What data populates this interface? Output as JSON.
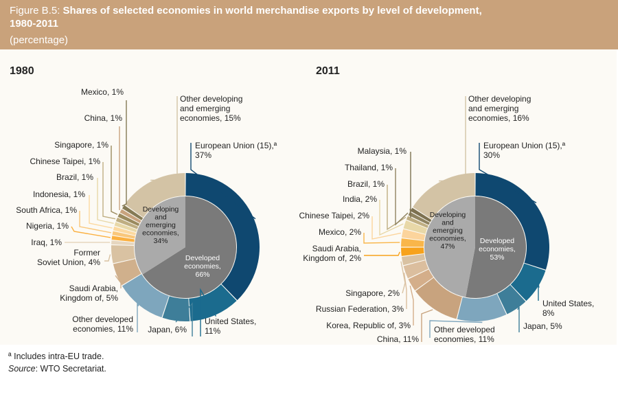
{
  "header": {
    "figure_label": "Figure B.5:",
    "title_line1": "Shares of selected economies in world merchandise exports by level of development,",
    "title_line2": "1980-2011",
    "subtitle": "(percentage)"
  },
  "colors": {
    "header_bg": "#c9a27b",
    "eu": "#0f4870",
    "us": "#1b6b8e",
    "japan": "#3e7e99",
    "other_developed": "#7ea6bd",
    "developed_inner": "#7a7a7a",
    "developing_inner": "#aaaaaa",
    "other_developing": "#d3c3a5",
    "china": "#c8a37e",
    "saudi_arabia": "#d0b08c",
    "former_soviet_union": "#d9c2a2",
    "iraq": "#e6d6bf",
    "nigeria": "#fbb040",
    "south_africa": "#f9c77b",
    "indonesia": "#fcd9a0",
    "brazil": "#e8d8a8",
    "chinese_taipei": "#bfae82",
    "singapore": "#9a8a5e",
    "mexico": "#857a55",
    "korea": "#d4ae8a",
    "russian_federation": "#dbbe9e",
    "saudi_2011": "#f7a21b",
    "mexico_2011": "#f9b64a",
    "india": "#fcd49c",
    "thailand": "#8f8360",
    "malaysia": "#7d7150"
  },
  "chart_data": [
    {
      "type": "pie",
      "title": "1980",
      "inner_ring": [
        {
          "label": "Developed economies, 66%",
          "value": 66
        },
        {
          "label": "Developing and emerging economies, 34%",
          "value": 34
        }
      ],
      "outer_ring": [
        {
          "label": "European Union (15),ª 37%",
          "value": 37,
          "color_key": "eu"
        },
        {
          "label": "United States, 11%",
          "value": 11,
          "color_key": "us"
        },
        {
          "label": "Japan, 6%",
          "value": 6,
          "color_key": "japan"
        },
        {
          "label": "Other developed economies, 11%",
          "value": 11,
          "color_key": "other_developed"
        },
        {
          "label": "Saudi Arabia, Kingdom of, 5%",
          "value": 5,
          "color_key": "saudi_arabia"
        },
        {
          "label": "Former Soviet Union, 4%",
          "value": 4,
          "color_key": "former_soviet_union"
        },
        {
          "label": "Iraq, 1%",
          "value": 1,
          "color_key": "iraq"
        },
        {
          "label": "Nigeria, 1%",
          "value": 1,
          "color_key": "nigeria"
        },
        {
          "label": "South Africa, 1%",
          "value": 1,
          "color_key": "south_africa"
        },
        {
          "label": "Indonesia, 1%",
          "value": 1,
          "color_key": "indonesia"
        },
        {
          "label": "Brazil, 1%",
          "value": 1,
          "color_key": "brazil"
        },
        {
          "label": "Chinese Taipei, 1%",
          "value": 1,
          "color_key": "chinese_taipei"
        },
        {
          "label": "Singapore, 1%",
          "value": 1,
          "color_key": "singapore"
        },
        {
          "label": "China, 1%",
          "value": 1,
          "color_key": "china"
        },
        {
          "label": "Mexico, 1%",
          "value": 1,
          "color_key": "mexico"
        },
        {
          "label": "Other developing and emerging economies, 15%",
          "value": 15,
          "color_key": "other_developing"
        }
      ]
    },
    {
      "type": "pie",
      "title": "2011",
      "inner_ring": [
        {
          "label": "Developed economies, 53%",
          "value": 53
        },
        {
          "label": "Developing and emerging economies, 47%",
          "value": 47
        }
      ],
      "outer_ring": [
        {
          "label": "European Union (15),ª 30%",
          "value": 30,
          "color_key": "eu"
        },
        {
          "label": "United States, 8%",
          "value": 8,
          "color_key": "us"
        },
        {
          "label": "Japan, 5%",
          "value": 5,
          "color_key": "japan"
        },
        {
          "label": "Other developed economies, 11%",
          "value": 11,
          "color_key": "other_developed"
        },
        {
          "label": "China, 11%",
          "value": 11,
          "color_key": "china"
        },
        {
          "label": "Korea, Republic of, 3%",
          "value": 3,
          "color_key": "korea"
        },
        {
          "label": "Russian Federation, 3%",
          "value": 3,
          "color_key": "russian_federation"
        },
        {
          "label": "Singapore, 2%",
          "value": 2,
          "color_key": "former_soviet_union"
        },
        {
          "label": "Saudi Arabia, Kingdom of, 2%",
          "value": 2,
          "color_key": "saudi_2011"
        },
        {
          "label": "Mexico, 2%",
          "value": 2,
          "color_key": "mexico_2011"
        },
        {
          "label": "Chinese Taipei, 2%",
          "value": 2,
          "color_key": "india"
        },
        {
          "label": "India, 2%",
          "value": 2,
          "color_key": "brazil"
        },
        {
          "label": "Brazil, 1%",
          "value": 1,
          "color_key": "chinese_taipei"
        },
        {
          "label": "Thailand, 1%",
          "value": 1,
          "color_key": "thailand"
        },
        {
          "label": "Malaysia, 1%",
          "value": 1,
          "color_key": "malaysia"
        },
        {
          "label": "Other developing and emerging economies, 16%",
          "value": 16,
          "color_key": "other_developing"
        }
      ]
    }
  ],
  "notes": {
    "footnote": "ª Includes intra-EU trade.",
    "source_label": "Source",
    "source_text": ": WTO Secretariat."
  }
}
